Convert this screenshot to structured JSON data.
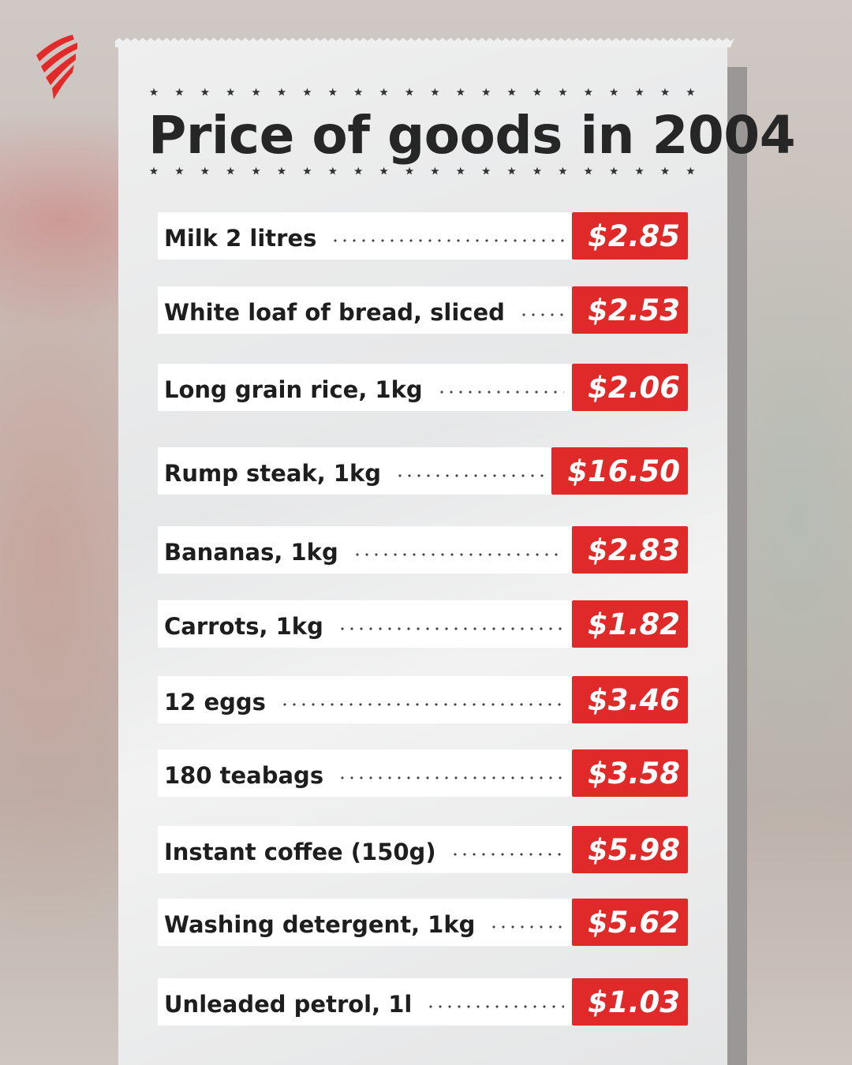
{
  "header": {
    "title": "Price of goods in 2004"
  },
  "items": [
    {
      "name": "Milk 2 litres",
      "price": "$2.85"
    },
    {
      "name": "White loaf of bread, sliced",
      "price": "$2.53"
    },
    {
      "name": "Long grain rice, 1kg",
      "price": "$2.06"
    },
    {
      "name": "Rump steak, 1kg",
      "price": "$16.50"
    },
    {
      "name": "Bananas, 1kg",
      "price": "$2.83"
    },
    {
      "name": "Carrots, 1kg",
      "price": "$1.82"
    },
    {
      "name": "12 eggs",
      "price": "$3.46"
    },
    {
      "name": "180 teabags",
      "price": "$3.58"
    },
    {
      "name": "Instant coffee (150g)",
      "price": "$5.98"
    },
    {
      "name": "Washing detergent, 1kg",
      "price": "$5.62"
    },
    {
      "name": "Unleaded petrol, 1l",
      "price": "$1.03"
    }
  ]
}
